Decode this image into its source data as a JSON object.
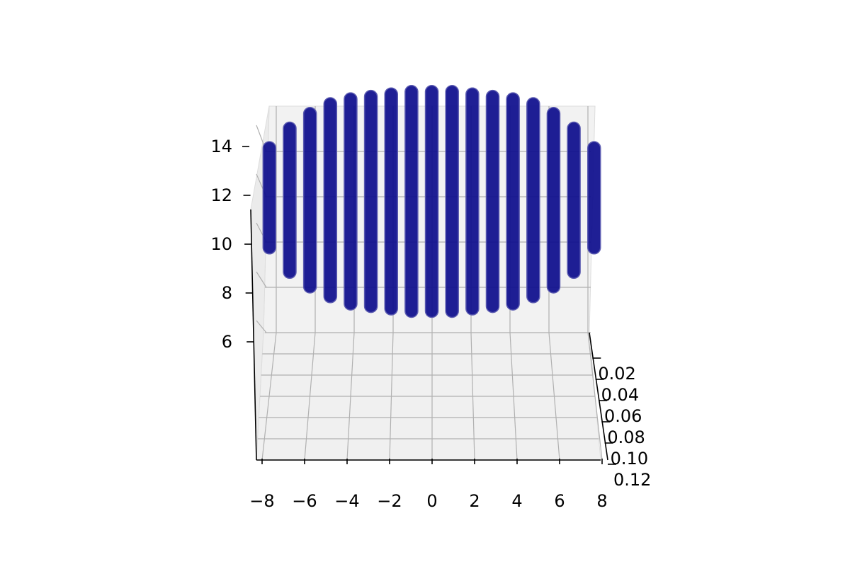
{
  "chart_data": {
    "type": "scatter",
    "projection": "3d",
    "title": "",
    "xlabel": "",
    "ylabel": "",
    "zlabel": "",
    "grid": true,
    "x_ticks": [
      "−8",
      "−6",
      "−4",
      "−2",
      "0",
      "2",
      "4",
      "6",
      "8"
    ],
    "x_tick_values": [
      -8,
      -6,
      -4,
      -2,
      0,
      2,
      4,
      6,
      8
    ],
    "y_ticks": [
      "0.02",
      "0.04",
      "0.06",
      "0.08",
      "0.10",
      "0.12"
    ],
    "y_tick_values": [
      0.02,
      0.04,
      0.06,
      0.08,
      0.1,
      0.12
    ],
    "z_ticks": [
      "6",
      "8",
      "10",
      "12",
      "14"
    ],
    "z_tick_values": [
      6,
      8,
      10,
      12,
      14
    ],
    "xlim": [
      -8.3,
      8.3
    ],
    "zlim": [
      5.5,
      16.5
    ],
    "colors": {
      "marker": "#0c0c8c",
      "pane": "#f2f2f2",
      "grid": "#b0b0b0"
    },
    "series": [
      {
        "x": -8,
        "z": [
          9.6,
          14.2
        ]
      },
      {
        "x": -7,
        "z": [
          8.6,
          15.0
        ]
      },
      {
        "x": -6,
        "z": [
          8.0,
          15.6
        ]
      },
      {
        "x": -5,
        "z": [
          7.6,
          16.0
        ]
      },
      {
        "x": -4,
        "z": [
          7.3,
          16.2
        ]
      },
      {
        "x": -3,
        "z": [
          7.2,
          16.3
        ]
      },
      {
        "x": -2,
        "z": [
          7.1,
          16.4
        ]
      },
      {
        "x": -1,
        "z": [
          7.0,
          16.5
        ]
      },
      {
        "x": 0,
        "z": [
          7.0,
          16.5
        ]
      },
      {
        "x": 1,
        "z": [
          7.0,
          16.5
        ]
      },
      {
        "x": 2,
        "z": [
          7.1,
          16.4
        ]
      },
      {
        "x": 3,
        "z": [
          7.2,
          16.3
        ]
      },
      {
        "x": 4,
        "z": [
          7.3,
          16.2
        ]
      },
      {
        "x": 5,
        "z": [
          7.6,
          16.0
        ]
      },
      {
        "x": 6,
        "z": [
          8.0,
          15.6
        ]
      },
      {
        "x": 7,
        "z": [
          8.6,
          15.0
        ]
      },
      {
        "x": 8,
        "z": [
          9.6,
          14.2
        ]
      }
    ]
  }
}
